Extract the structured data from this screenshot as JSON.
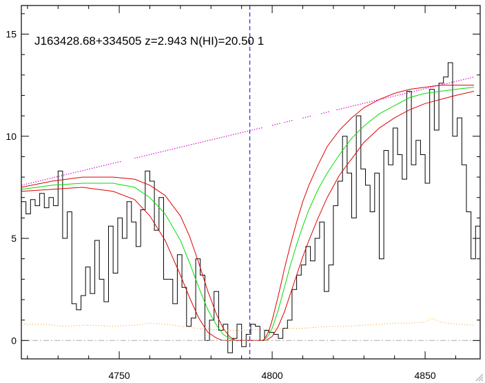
{
  "chart_data": {
    "type": "line",
    "title": "J163428.68+334505 z=2.943 N(HI)=20.50 1",
    "xlabel": "",
    "ylabel": "",
    "xlim": [
      4718,
      4868
    ],
    "ylim": [
      -0.9,
      16.4
    ],
    "x_ticks": [
      4750,
      4800,
      4850
    ],
    "y_ticks": [
      0,
      5,
      10,
      15
    ],
    "x_tick_labels": [
      "4750",
      "4800",
      "4850"
    ],
    "y_tick_labels": [
      "0",
      "5",
      "10",
      "15"
    ],
    "grid": false,
    "legend": "none",
    "marker_line_x": 4792.7,
    "continuum_line": {
      "x": [
        4718,
        4866
      ],
      "y": [
        7.6,
        12.9
      ],
      "gaps": [
        [
          4751,
          4755
        ],
        [
          4797,
          4800
        ],
        [
          4803,
          4804
        ],
        [
          4807,
          4810
        ],
        [
          4813,
          4816
        ],
        [
          4819,
          4821
        ]
      ]
    },
    "series": [
      {
        "style": "step",
        "color": "#000000",
        "x": [
          4718,
          4719.5,
          4721,
          4722.5,
          4724,
          4725.5,
          4727,
          4728.5,
          4730,
          4731.5,
          4733,
          4734.5,
          4736,
          4737.5,
          4739,
          4740.5,
          4742,
          4743.5,
          4745,
          4746.5,
          4748,
          4749.5,
          4751,
          4752.5,
          4754,
          4755.5,
          4757,
          4758.5,
          4760,
          4761.5,
          4763,
          4764.5,
          4766,
          4767.5,
          4769,
          4770.5,
          4772,
          4773.5,
          4775,
          4776.5,
          4778,
          4779.5,
          4781,
          4782.5,
          4784,
          4785.5,
          4787,
          4788.5,
          4790,
          4791.5,
          4793,
          4794.5,
          4796,
          4797.5,
          4799,
          4800.5,
          4802,
          4803.5,
          4805,
          4806.5,
          4808,
          4809.5,
          4811,
          4812.5,
          4814,
          4815.5,
          4817,
          4818.5,
          4820,
          4821.5,
          4823,
          4824.5,
          4826,
          4827.5,
          4829,
          4830.5,
          4832,
          4833.5,
          4835,
          4836.5,
          4838,
          4839.5,
          4841,
          4842.5,
          4844,
          4845.5,
          4847,
          4848.5,
          4850,
          4851.5,
          4853,
          4854.5,
          4856,
          4857.5,
          4859,
          4860.5,
          4862,
          4863.5,
          4865,
          4866.5,
          4868
        ],
        "y": [
          6.8,
          6.2,
          6.9,
          6.6,
          7.2,
          6.5,
          7.0,
          6.6,
          8.3,
          5.0,
          6.3,
          1.8,
          1.5,
          2.2,
          3.6,
          2.3,
          4.9,
          3.0,
          1.9,
          5.6,
          3.3,
          6.0,
          5.0,
          6.8,
          5.8,
          4.6,
          6.4,
          8.3,
          7.8,
          5.4,
          7.0,
          3.0,
          3.0,
          1.8,
          4.2,
          2.6,
          0.7,
          1.1,
          4.0,
          3.2,
          0.0,
          1.0,
          2.4,
          0.5,
          0.8,
          -0.6,
          0.1,
          0.8,
          -0.3,
          0.3,
          0.8,
          0.7,
          0.0,
          0.5,
          0.4,
          0.3,
          0.1,
          0.6,
          1.0,
          2.5,
          3.2,
          3.7,
          4.6,
          3.9,
          5.0,
          5.8,
          2.4,
          3.7,
          6.6,
          7.8,
          10.0,
          8.2,
          6.0,
          11.0,
          8.4,
          7.6,
          6.3,
          8.2,
          4.0,
          9.3,
          8.6,
          10.4,
          9.1,
          7.9,
          12.2,
          8.6,
          9.8,
          9.1,
          7.7,
          12.3,
          10.3,
          12.6,
          12.9,
          13.6,
          10.0,
          10.9,
          8.6,
          6.3,
          4.0,
          5.6,
          2.8
        ]
      },
      {
        "style": "line",
        "color": "#00dd00",
        "x": [
          4718,
          4728,
          4738,
          4748,
          4755,
          4760,
          4765,
          4770,
          4773,
          4776,
          4779,
          4782,
          4784,
          4786,
          4788,
          4790,
          4792,
          4794,
          4796,
          4797,
          4798,
          4799,
          4800,
          4802,
          4804,
          4806,
          4808,
          4810,
          4812,
          4815,
          4818,
          4822,
          4826,
          4830,
          4835,
          4840,
          4845,
          4850,
          4855,
          4860,
          4866
        ],
        "y": [
          7.4,
          7.6,
          7.7,
          7.7,
          7.5,
          7.0,
          6.2,
          4.9,
          3.8,
          2.6,
          1.5,
          0.7,
          0.3,
          0.1,
          0.0,
          0.0,
          0.0,
          0.0,
          0.0,
          0.0,
          0.1,
          0.3,
          0.6,
          1.5,
          2.6,
          3.7,
          4.7,
          5.6,
          6.4,
          7.4,
          8.2,
          9.1,
          9.9,
          10.5,
          11.1,
          11.5,
          11.9,
          12.1,
          12.2,
          12.3,
          12.4
        ]
      },
      {
        "style": "line",
        "color": "#dd0000",
        "x": [
          4718,
          4728,
          4738,
          4748,
          4755,
          4760,
          4765,
          4770,
          4773,
          4776,
          4779,
          4782,
          4784,
          4786,
          4788,
          4790,
          4792,
          4794,
          4796,
          4797,
          4798,
          4799,
          4800,
          4802,
          4804,
          4806,
          4808,
          4810,
          4812,
          4815,
          4818,
          4822,
          4826,
          4830,
          4835,
          4840,
          4845,
          4850,
          4855,
          4860,
          4866
        ],
        "y": [
          7.5,
          7.8,
          8.0,
          8.0,
          7.9,
          7.6,
          7.1,
          6.1,
          5.1,
          3.8,
          2.4,
          1.2,
          0.6,
          0.2,
          0.0,
          0.0,
          0.0,
          0.0,
          0.0,
          0.0,
          0.2,
          0.5,
          1.0,
          2.2,
          3.5,
          4.7,
          5.8,
          6.8,
          7.6,
          8.6,
          9.5,
          10.3,
          10.9,
          11.4,
          11.8,
          12.1,
          12.3,
          12.4,
          12.5,
          12.5,
          12.5
        ]
      },
      {
        "style": "line",
        "color": "#dd0000",
        "x": [
          4718,
          4728,
          4738,
          4748,
          4755,
          4760,
          4765,
          4770,
          4773,
          4776,
          4779,
          4782,
          4784,
          4786,
          4788,
          4790,
          4792,
          4794,
          4796,
          4797,
          4798,
          4799,
          4800,
          4802,
          4804,
          4806,
          4808,
          4810,
          4812,
          4815,
          4818,
          4822,
          4826,
          4830,
          4835,
          4840,
          4845,
          4850,
          4855,
          4860,
          4866
        ],
        "y": [
          7.3,
          7.4,
          7.5,
          7.3,
          6.9,
          6.1,
          4.9,
          3.2,
          2.1,
          1.1,
          0.4,
          0.1,
          0.0,
          0.0,
          0.0,
          0.0,
          0.0,
          0.0,
          0.0,
          0.0,
          0.0,
          0.1,
          0.2,
          0.7,
          1.4,
          2.3,
          3.2,
          4.1,
          4.9,
          6.0,
          7.0,
          8.1,
          8.9,
          9.7,
          10.4,
          10.9,
          11.3,
          11.6,
          11.8,
          12.0,
          12.2
        ]
      },
      {
        "style": "dotted",
        "color": "#ff8c00",
        "x": [
          4718,
          4725,
          4732,
          4740,
          4748,
          4755,
          4760,
          4765,
          4770,
          4775,
          4780,
          4785,
          4790,
          4795,
          4800,
          4805,
          4810,
          4815,
          4820,
          4825,
          4830,
          4835,
          4840,
          4845,
          4850,
          4852,
          4855,
          4860,
          4866
        ],
        "y": [
          0.8,
          0.8,
          0.7,
          0.75,
          0.7,
          0.75,
          0.85,
          0.8,
          0.7,
          0.6,
          0.55,
          0.5,
          0.5,
          0.55,
          0.55,
          0.6,
          0.6,
          0.65,
          0.7,
          0.7,
          0.75,
          0.8,
          0.85,
          0.85,
          0.9,
          1.1,
          0.9,
          0.8,
          0.75
        ]
      },
      {
        "style": "dashdot",
        "color": "#aaaaaa",
        "x": [
          4718,
          4868
        ],
        "y": [
          0,
          0
        ]
      }
    ]
  }
}
